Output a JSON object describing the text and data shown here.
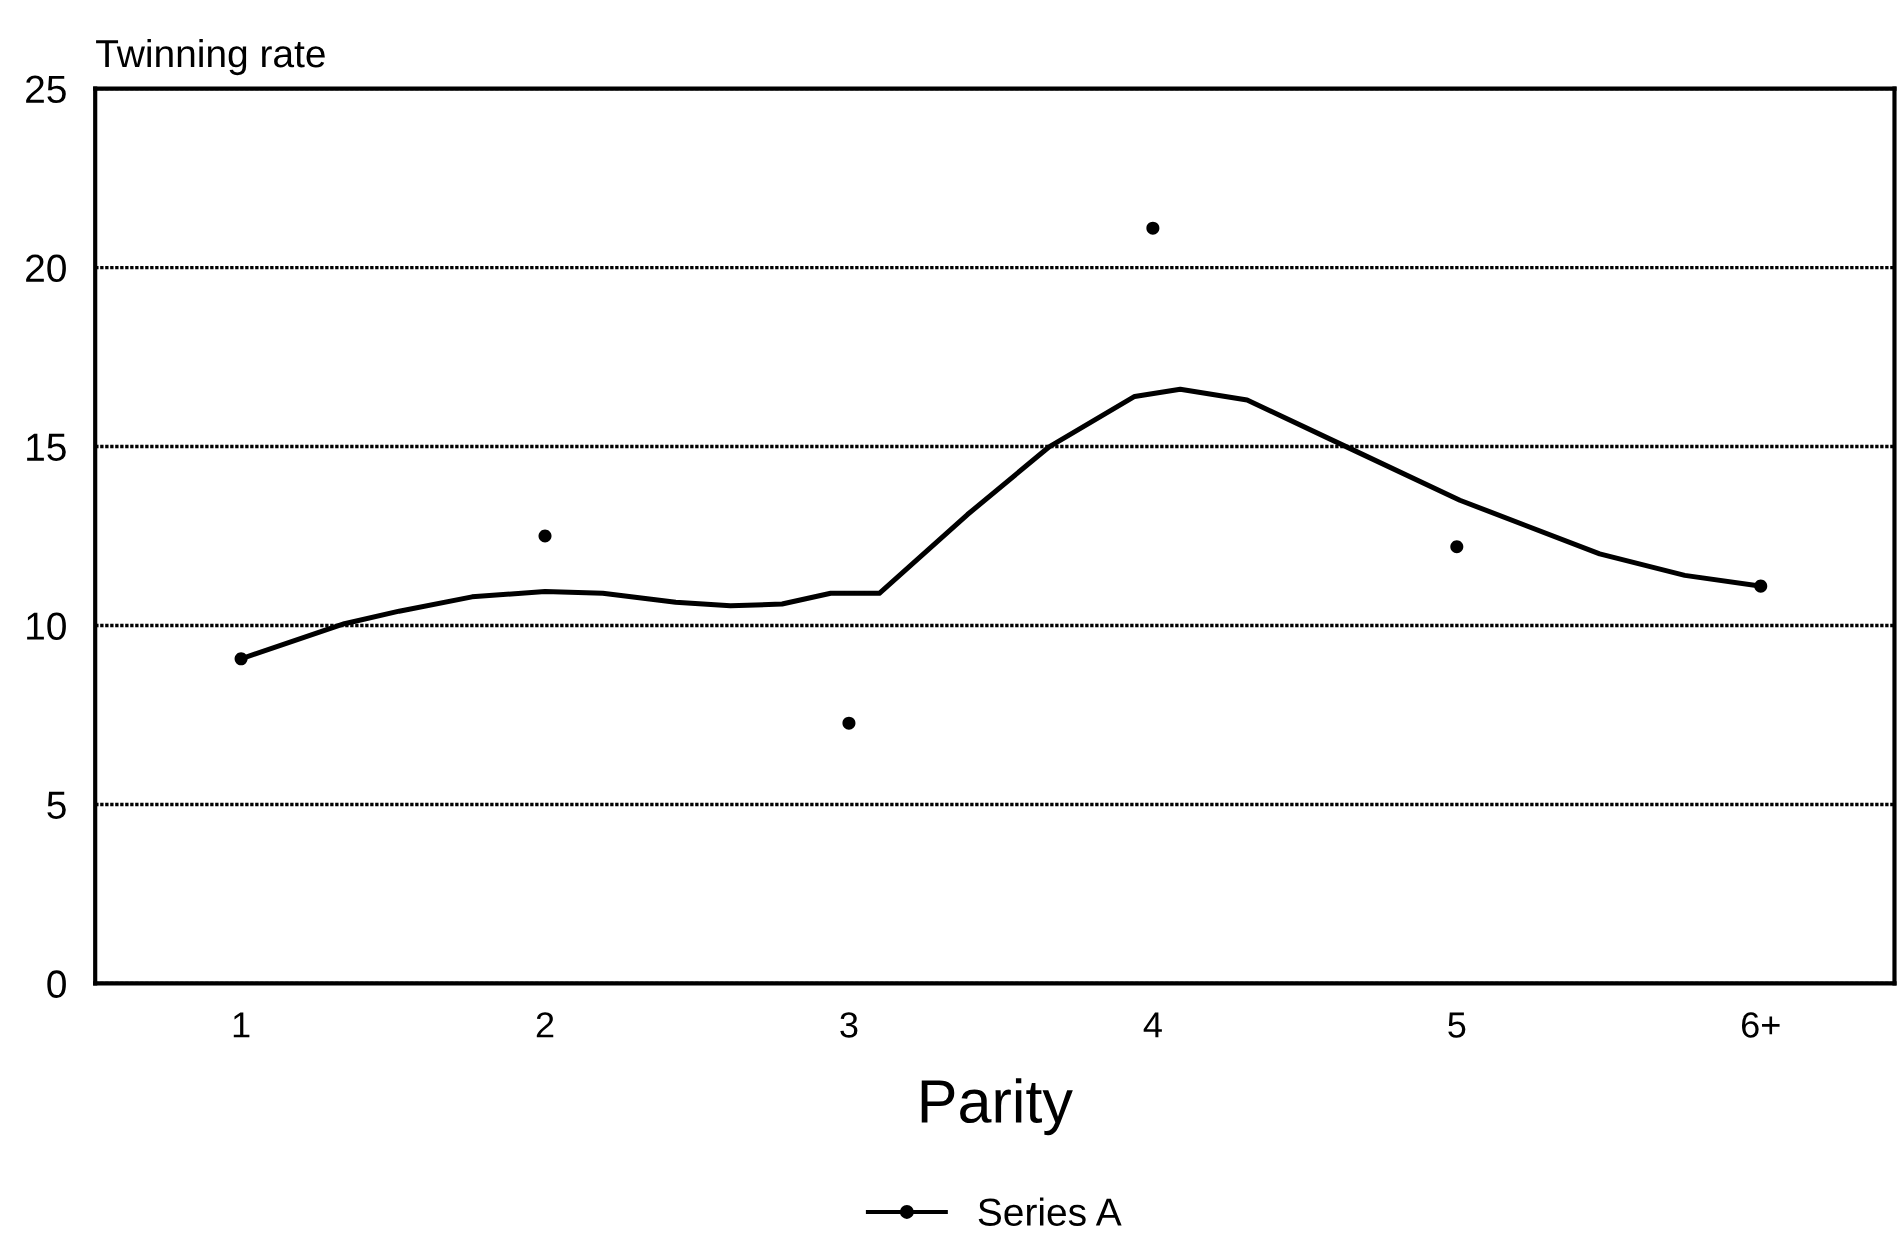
{
  "chart_data": {
    "type": "line",
    "ylabel": "Twinning rate",
    "xlabel": "Parity",
    "xlim": [
      0.52,
      6.44
    ],
    "xticks": [
      1,
      2,
      3,
      4,
      5,
      {
        "value": 6,
        "label": "6+"
      }
    ],
    "ylim": [
      0,
      25
    ],
    "yticks": [
      0,
      5,
      10,
      15,
      20,
      25
    ],
    "grid": "y",
    "legend": "bottom",
    "series": [
      {
        "type": "scatter",
        "name": "Series A",
        "color": "#000000",
        "marker": "circle",
        "x": [
          1,
          2,
          3,
          4,
          5,
          6
        ],
        "values": [
          9.07,
          12.5,
          7.27,
          21.1,
          12.2,
          11.1
        ]
      },
      {
        "color": "#000000",
        "x": [
          1.0,
          1.34,
          1.52,
          1.76,
          2.0,
          2.19,
          2.43,
          2.61,
          2.78,
          2.94,
          3.1,
          3.39,
          3.66,
          3.94,
          4.09,
          4.31,
          4.66,
          5.01,
          5.47,
          5.75,
          6.0
        ],
        "values": [
          9.07,
          10.05,
          10.4,
          10.8,
          10.95,
          10.9,
          10.65,
          10.55,
          10.6,
          10.9,
          10.9,
          13.1,
          15.0,
          16.4,
          16.6,
          16.3,
          14.9,
          13.5,
          12.0,
          11.4,
          11.1
        ]
      }
    ]
  }
}
